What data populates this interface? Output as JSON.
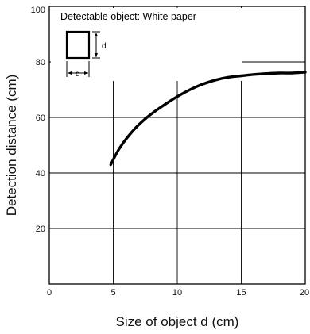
{
  "chart_data": {
    "type": "line",
    "title": "",
    "xlabel": "Size of object d (cm)",
    "ylabel": "Detection distance (cm)",
    "xlim": [
      0,
      20
    ],
    "ylim": [
      0,
      100
    ],
    "xticks": [
      0,
      5,
      10,
      15,
      20
    ],
    "yticks": [
      20,
      40,
      60,
      80,
      100
    ],
    "grid": true,
    "annotation": "Detectable object: White paper",
    "inset_label": "d",
    "series": [
      {
        "x": [
          4.8,
          5.5,
          6.5,
          7.5,
          8.5,
          10,
          11,
          12,
          13,
          14,
          15,
          16,
          17,
          18,
          19,
          20
        ],
        "y": [
          43,
          49,
          55,
          59.5,
          63,
          67.5,
          70,
          72,
          73.5,
          74.5,
          75,
          75.5,
          75.8,
          76,
          76,
          76.3
        ]
      }
    ]
  }
}
